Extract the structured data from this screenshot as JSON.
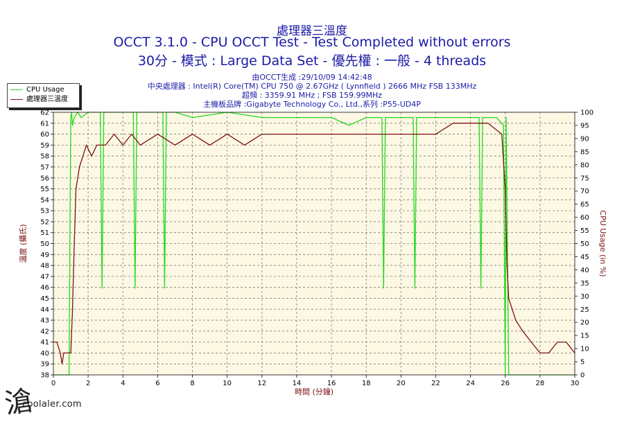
{
  "header": {
    "title1": "處理器三溫度",
    "title2": "OCCT 3.1.0 - CPU OCCT Test - Test Completed without errors",
    "title3": "30分 - 模式 : Large Data Set - 優先權 : 一般 - 4 threads"
  },
  "info": {
    "line1": "由OCCT生成 :29/10/09 14:42:48",
    "line2": "中央處理器 : Intel(R) Core(TM) CPU 750 @ 2.67GHz ( Lynnfield ) 2666 MHz FSB 133MHz",
    "line3": "超頻 : 3359.91 MHz ; FSB 159.99MHz",
    "line4": "主機板品牌 :Gigabyte Technology Co., Ltd.,系列 :P55-UD4P"
  },
  "legend": {
    "cpu_usage": "CPU Usage",
    "temperature": "處理器三溫度"
  },
  "watermark": {
    "glyph": "滄",
    "text": "coolaler.com"
  },
  "colors": {
    "usage": "#22d81e",
    "temp": "#7a1010",
    "text": "#1a1aa6",
    "plot_bg": "#fdf8e4",
    "grid": "#7a7a7a"
  },
  "chart_data": {
    "type": "line",
    "xlabel": "時間 (分鐘)",
    "ylabel_left": "溫度 (攝氏)",
    "ylabel_right": "CPU Usage (in %)",
    "xlim": [
      0,
      30
    ],
    "ylim_left": [
      38,
      62
    ],
    "ylim_right": [
      0,
      100
    ],
    "x_ticks": [
      0,
      2,
      4,
      6,
      8,
      10,
      12,
      14,
      16,
      18,
      20,
      22,
      24,
      26,
      28,
      30
    ],
    "y_left_ticks": [
      38,
      39,
      40,
      41,
      42,
      43,
      44,
      45,
      46,
      47,
      48,
      49,
      50,
      51,
      52,
      53,
      54,
      55,
      56,
      57,
      58,
      59,
      60,
      61,
      62
    ],
    "y_right_ticks": [
      0,
      5,
      10,
      15,
      20,
      25,
      30,
      35,
      40,
      45,
      50,
      55,
      60,
      65,
      70,
      75,
      80,
      85,
      90,
      95,
      100
    ],
    "grid": true,
    "legend": "top-left",
    "series": [
      {
        "name": "CPU Usage",
        "axis": "right",
        "x": [
          0,
          0.9,
          0.95,
          1.0,
          1.05,
          1.1,
          1.2,
          1.4,
          1.6,
          2.0,
          2.7,
          2.8,
          2.9,
          3.2,
          4.0,
          4.6,
          4.7,
          4.8,
          5.5,
          6.3,
          6.4,
          6.5,
          7.0,
          8.0,
          10.0,
          12.0,
          14.0,
          16.0,
          17.0,
          18.0,
          18.9,
          19.0,
          19.1,
          20.0,
          20.7,
          20.8,
          20.9,
          22.0,
          24.0,
          24.5,
          24.6,
          24.7,
          25.0,
          25.5,
          25.9,
          26.0,
          26.05,
          26.2,
          28.0,
          30.0
        ],
        "values": [
          0,
          0,
          50,
          98,
          100,
          95,
          98,
          100,
          98,
          100,
          100,
          33,
          100,
          100,
          100,
          100,
          33,
          100,
          100,
          100,
          33,
          100,
          100,
          98,
          100,
          98,
          98,
          98,
          95,
          98,
          98,
          33,
          98,
          98,
          98,
          33,
          98,
          98,
          98,
          98,
          33,
          98,
          98,
          98,
          95,
          0,
          98,
          0,
          0,
          0
        ]
      },
      {
        "name": "處理器三溫度",
        "axis": "left",
        "x": [
          0,
          0.2,
          0.4,
          0.5,
          0.6,
          0.8,
          0.9,
          1.0,
          1.1,
          1.2,
          1.3,
          1.4,
          1.5,
          1.7,
          1.9,
          2.2,
          2.5,
          3.0,
          3.5,
          4.0,
          4.5,
          5.0,
          6.0,
          7.0,
          8.0,
          9.0,
          10.0,
          11.0,
          12.0,
          14.0,
          16.0,
          18.0,
          20.0,
          21.0,
          22.0,
          23.0,
          24.0,
          25.0,
          25.8,
          26.0,
          26.1,
          26.2,
          26.4,
          26.6,
          27.0,
          27.5,
          28.0,
          28.5,
          29.0,
          29.5,
          30.0
        ],
        "values": [
          41,
          41,
          40,
          39,
          40,
          40,
          40,
          40,
          44,
          50,
          55,
          56,
          57,
          58,
          59,
          58,
          59,
          59,
          60,
          59,
          60,
          59,
          60,
          59,
          60,
          59,
          60,
          59,
          60,
          60,
          60,
          60,
          60,
          60,
          60,
          61,
          61,
          61,
          60,
          55,
          48,
          45,
          44,
          43,
          42,
          41,
          40,
          40,
          41,
          41,
          40
        ]
      }
    ]
  }
}
